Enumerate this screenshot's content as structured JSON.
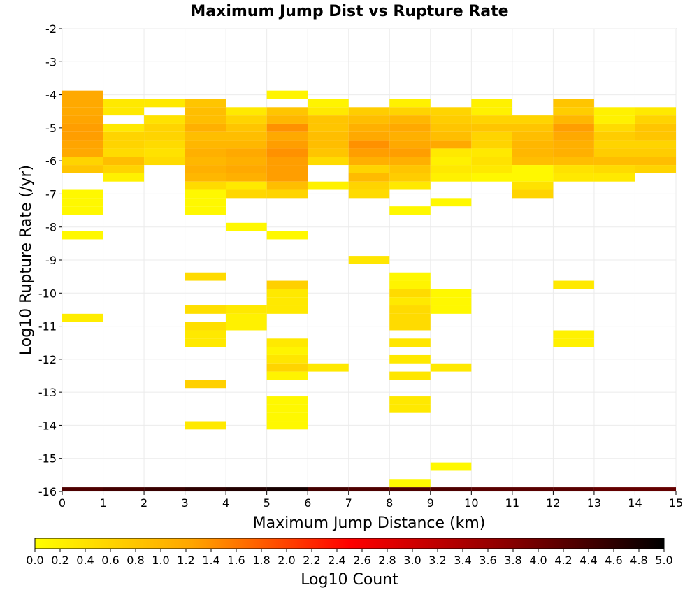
{
  "chart_data": {
    "type": "heatmap",
    "title": "Maximum Jump Dist vs Rupture Rate",
    "xlabel": "Maximum Jump Distance (km)",
    "ylabel": "Log10 Rupture Rate (/yr)",
    "xlim": [
      0,
      15
    ],
    "ylim": [
      -16,
      -2
    ],
    "x_ticks": [
      "0",
      "1",
      "2",
      "3",
      "4",
      "5",
      "6",
      "7",
      "8",
      "9",
      "10",
      "11",
      "12",
      "13",
      "14",
      "15"
    ],
    "y_ticks": [
      "-2",
      "-3",
      "-4",
      "-5",
      "-6",
      "-7",
      "-8",
      "-9",
      "-10",
      "-11",
      "-12",
      "-13",
      "-14",
      "-15",
      "-16"
    ],
    "bin_width_x": 1,
    "bin_height_y": 0.25,
    "grid": true,
    "colorbar": {
      "label": "Log10 Count",
      "range": [
        0,
        5
      ],
      "ticks": [
        "0.0",
        "0.2",
        "0.4",
        "0.6",
        "0.8",
        "1.0",
        "1.2",
        "1.4",
        "1.6",
        "1.8",
        "2.0",
        "2.2",
        "2.4",
        "2.6",
        "2.8",
        "3.0",
        "3.2",
        "3.4",
        "3.6",
        "3.8",
        "4.0",
        "4.2",
        "4.4",
        "4.6",
        "4.8",
        "5.0"
      ],
      "colors": [
        "#ffff00",
        "#ffa500",
        "#ff0000",
        "#8b0000",
        "#000000"
      ]
    },
    "cells": [
      {
        "x": 0,
        "y": -16.0,
        "v": 4.3
      },
      {
        "x": 1,
        "y": -16.0,
        "v": 4.4
      },
      {
        "x": 2,
        "y": -16.0,
        "v": 4.5
      },
      {
        "x": 3,
        "y": -16.0,
        "v": 4.6
      },
      {
        "x": 4,
        "y": -16.0,
        "v": 4.7
      },
      {
        "x": 5,
        "y": -16.0,
        "v": 4.8
      },
      {
        "x": 6,
        "y": -16.0,
        "v": 4.4
      },
      {
        "x": 7,
        "y": -16.0,
        "v": 4.3
      },
      {
        "x": 8,
        "y": -16.0,
        "v": 4.3
      },
      {
        "x": 9,
        "y": -16.0,
        "v": 4.3
      },
      {
        "x": 10,
        "y": -16.0,
        "v": 4.2
      },
      {
        "x": 11,
        "y": -16.0,
        "v": 4.2
      },
      {
        "x": 12,
        "y": -16.0,
        "v": 4.2
      },
      {
        "x": 13,
        "y": -16.0,
        "v": 4.1
      },
      {
        "x": 14,
        "y": -16.0,
        "v": 4.1
      },
      {
        "x": 0,
        "y": -4.0,
        "v": 1.2
      },
      {
        "x": 0,
        "y": -4.25,
        "v": 1.2
      },
      {
        "x": 0,
        "y": -4.5,
        "v": 1.2
      },
      {
        "x": 0,
        "y": -4.75,
        "v": 1.25
      },
      {
        "x": 0,
        "y": -5.0,
        "v": 1.3
      },
      {
        "x": 0,
        "y": -5.25,
        "v": 1.3
      },
      {
        "x": 0,
        "y": -5.5,
        "v": 1.25
      },
      {
        "x": 0,
        "y": -5.75,
        "v": 1.2
      },
      {
        "x": 0,
        "y": -6.0,
        "v": 0.6
      },
      {
        "x": 0,
        "y": -6.25,
        "v": 0.8
      },
      {
        "x": 0,
        "y": -7.0,
        "v": 0.1
      },
      {
        "x": 0,
        "y": -7.25,
        "v": 0.1
      },
      {
        "x": 0,
        "y": -7.5,
        "v": 0.1
      },
      {
        "x": 0,
        "y": -8.25,
        "v": 0.1
      },
      {
        "x": 0,
        "y": -10.75,
        "v": 0.25
      },
      {
        "x": 1,
        "y": -4.25,
        "v": 0.3
      },
      {
        "x": 1,
        "y": -4.5,
        "v": 0.3
      },
      {
        "x": 1,
        "y": -5.0,
        "v": 0.3
      },
      {
        "x": 1,
        "y": -5.25,
        "v": 0.6
      },
      {
        "x": 1,
        "y": -5.5,
        "v": 0.6
      },
      {
        "x": 1,
        "y": -5.75,
        "v": 0.5
      },
      {
        "x": 1,
        "y": -6.0,
        "v": 0.9
      },
      {
        "x": 1,
        "y": -6.25,
        "v": 0.6
      },
      {
        "x": 1,
        "y": -6.5,
        "v": 0.2
      },
      {
        "x": 2,
        "y": -4.25,
        "v": 0.3
      },
      {
        "x": 2,
        "y": -4.75,
        "v": 0.4
      },
      {
        "x": 2,
        "y": -5.0,
        "v": 0.6
      },
      {
        "x": 2,
        "y": -5.25,
        "v": 0.6
      },
      {
        "x": 2,
        "y": -5.5,
        "v": 0.5
      },
      {
        "x": 2,
        "y": -5.75,
        "v": 0.4
      },
      {
        "x": 2,
        "y": -6.0,
        "v": 0.5
      },
      {
        "x": 3,
        "y": -4.25,
        "v": 0.8
      },
      {
        "x": 3,
        "y": -4.5,
        "v": 0.9
      },
      {
        "x": 3,
        "y": -4.75,
        "v": 0.9
      },
      {
        "x": 3,
        "y": -5.0,
        "v": 1.1
      },
      {
        "x": 3,
        "y": -5.25,
        "v": 0.9
      },
      {
        "x": 3,
        "y": -5.5,
        "v": 1.0
      },
      {
        "x": 3,
        "y": -5.75,
        "v": 1.1
      },
      {
        "x": 3,
        "y": -6.0,
        "v": 1.0
      },
      {
        "x": 3,
        "y": -6.25,
        "v": 1.1
      },
      {
        "x": 3,
        "y": -6.5,
        "v": 1.0
      },
      {
        "x": 3,
        "y": -6.75,
        "v": 0.5
      },
      {
        "x": 3,
        "y": -7.0,
        "v": 0.1
      },
      {
        "x": 3,
        "y": -7.25,
        "v": 0.1
      },
      {
        "x": 3,
        "y": -7.5,
        "v": 0.1
      },
      {
        "x": 3,
        "y": -9.5,
        "v": 0.5
      },
      {
        "x": 3,
        "y": -10.5,
        "v": 0.45
      },
      {
        "x": 3,
        "y": -11.0,
        "v": 0.45
      },
      {
        "x": 3,
        "y": -11.25,
        "v": 0.3
      },
      {
        "x": 3,
        "y": -11.5,
        "v": 0.3
      },
      {
        "x": 3,
        "y": -12.75,
        "v": 0.65
      },
      {
        "x": 3,
        "y": -14.0,
        "v": 0.3
      },
      {
        "x": 4,
        "y": -4.5,
        "v": 0.3
      },
      {
        "x": 4,
        "y": -4.75,
        "v": 0.6
      },
      {
        "x": 4,
        "y": -5.0,
        "v": 0.8
      },
      {
        "x": 4,
        "y": -5.25,
        "v": 0.9
      },
      {
        "x": 4,
        "y": -5.5,
        "v": 1.0
      },
      {
        "x": 4,
        "y": -5.75,
        "v": 1.2
      },
      {
        "x": 4,
        "y": -6.0,
        "v": 1.1
      },
      {
        "x": 4,
        "y": -6.25,
        "v": 1.2
      },
      {
        "x": 4,
        "y": -6.5,
        "v": 1.1
      },
      {
        "x": 4,
        "y": -6.75,
        "v": 0.3
      },
      {
        "x": 4,
        "y": -7.0,
        "v": 0.55
      },
      {
        "x": 4,
        "y": -8.0,
        "v": 0.1
      },
      {
        "x": 4,
        "y": -10.5,
        "v": 0.3
      },
      {
        "x": 4,
        "y": -10.75,
        "v": 0.2
      },
      {
        "x": 4,
        "y": -11.0,
        "v": 0.2
      },
      {
        "x": 5,
        "y": -4.0,
        "v": 0.15
      },
      {
        "x": 5,
        "y": -4.5,
        "v": 0.8
      },
      {
        "x": 5,
        "y": -4.75,
        "v": 1.0
      },
      {
        "x": 5,
        "y": -5.0,
        "v": 1.4
      },
      {
        "x": 5,
        "y": -5.25,
        "v": 1.2
      },
      {
        "x": 5,
        "y": -5.5,
        "v": 1.3
      },
      {
        "x": 5,
        "y": -5.75,
        "v": 1.4
      },
      {
        "x": 5,
        "y": -6.0,
        "v": 1.3
      },
      {
        "x": 5,
        "y": -6.25,
        "v": 1.3
      },
      {
        "x": 5,
        "y": -6.5,
        "v": 1.3
      },
      {
        "x": 5,
        "y": -6.75,
        "v": 0.9
      },
      {
        "x": 5,
        "y": -7.0,
        "v": 0.6
      },
      {
        "x": 5,
        "y": -8.25,
        "v": 0.1
      },
      {
        "x": 5,
        "y": -9.75,
        "v": 0.65
      },
      {
        "x": 5,
        "y": -10.0,
        "v": 0.3
      },
      {
        "x": 5,
        "y": -10.25,
        "v": 0.3
      },
      {
        "x": 5,
        "y": -10.5,
        "v": 0.3
      },
      {
        "x": 5,
        "y": -11.5,
        "v": 0.3
      },
      {
        "x": 5,
        "y": -11.75,
        "v": 0.15
      },
      {
        "x": 5,
        "y": -12.0,
        "v": 0.35
      },
      {
        "x": 5,
        "y": -12.25,
        "v": 0.6
      },
      {
        "x": 5,
        "y": -12.5,
        "v": 0.15
      },
      {
        "x": 5,
        "y": -13.25,
        "v": 0.1
      },
      {
        "x": 5,
        "y": -13.5,
        "v": 0.1
      },
      {
        "x": 5,
        "y": -13.75,
        "v": 0.1
      },
      {
        "x": 5,
        "y": -14.0,
        "v": 0.1
      },
      {
        "x": 6,
        "y": -4.25,
        "v": 0.15
      },
      {
        "x": 6,
        "y": -4.5,
        "v": 0.3
      },
      {
        "x": 6,
        "y": -4.75,
        "v": 0.8
      },
      {
        "x": 6,
        "y": -5.0,
        "v": 0.8
      },
      {
        "x": 6,
        "y": -5.25,
        "v": 0.9
      },
      {
        "x": 6,
        "y": -5.5,
        "v": 0.9
      },
      {
        "x": 6,
        "y": -5.75,
        "v": 0.8
      },
      {
        "x": 6,
        "y": -6.0,
        "v": 0.5
      },
      {
        "x": 6,
        "y": -6.75,
        "v": 0.2
      },
      {
        "x": 6,
        "y": -12.25,
        "v": 0.3
      },
      {
        "x": 7,
        "y": -4.5,
        "v": 0.7
      },
      {
        "x": 7,
        "y": -4.75,
        "v": 0.9
      },
      {
        "x": 7,
        "y": -5.0,
        "v": 1.1
      },
      {
        "x": 7,
        "y": -5.25,
        "v": 1.2
      },
      {
        "x": 7,
        "y": -5.5,
        "v": 1.4
      },
      {
        "x": 7,
        "y": -5.75,
        "v": 1.3
      },
      {
        "x": 7,
        "y": -6.0,
        "v": 1.1
      },
      {
        "x": 7,
        "y": -6.25,
        "v": 0.6
      },
      {
        "x": 7,
        "y": -6.5,
        "v": 0.95
      },
      {
        "x": 7,
        "y": -6.75,
        "v": 0.6
      },
      {
        "x": 7,
        "y": -7.0,
        "v": 0.5
      },
      {
        "x": 7,
        "y": -9.0,
        "v": 0.35
      },
      {
        "x": 8,
        "y": -4.25,
        "v": 0.2
      },
      {
        "x": 8,
        "y": -4.5,
        "v": 0.6
      },
      {
        "x": 8,
        "y": -4.75,
        "v": 1.0
      },
      {
        "x": 8,
        "y": -5.0,
        "v": 1.2
      },
      {
        "x": 8,
        "y": -5.25,
        "v": 1.1
      },
      {
        "x": 8,
        "y": -5.5,
        "v": 1.2
      },
      {
        "x": 8,
        "y": -5.75,
        "v": 1.3
      },
      {
        "x": 8,
        "y": -6.0,
        "v": 1.1
      },
      {
        "x": 8,
        "y": -6.25,
        "v": 0.8
      },
      {
        "x": 8,
        "y": -6.5,
        "v": 0.7
      },
      {
        "x": 8,
        "y": -6.75,
        "v": 0.3
      },
      {
        "x": 8,
        "y": -7.5,
        "v": 0.1
      },
      {
        "x": 8,
        "y": -9.5,
        "v": 0.1
      },
      {
        "x": 8,
        "y": -9.75,
        "v": 0.15
      },
      {
        "x": 8,
        "y": -10.0,
        "v": 0.5
      },
      {
        "x": 8,
        "y": -10.25,
        "v": 0.3
      },
      {
        "x": 8,
        "y": -10.5,
        "v": 0.5
      },
      {
        "x": 8,
        "y": -10.75,
        "v": 0.5
      },
      {
        "x": 8,
        "y": -11.0,
        "v": 0.5
      },
      {
        "x": 8,
        "y": -11.5,
        "v": 0.35
      },
      {
        "x": 8,
        "y": -12.0,
        "v": 0.3
      },
      {
        "x": 8,
        "y": -12.5,
        "v": 0.35
      },
      {
        "x": 8,
        "y": -13.25,
        "v": 0.3
      },
      {
        "x": 8,
        "y": -13.5,
        "v": 0.3
      },
      {
        "x": 8,
        "y": -15.75,
        "v": 0.1
      },
      {
        "x": 9,
        "y": -4.5,
        "v": 0.6
      },
      {
        "x": 9,
        "y": -4.75,
        "v": 0.7
      },
      {
        "x": 9,
        "y": -5.0,
        "v": 0.8
      },
      {
        "x": 9,
        "y": -5.25,
        "v": 0.9
      },
      {
        "x": 9,
        "y": -5.5,
        "v": 1.2
      },
      {
        "x": 9,
        "y": -5.75,
        "v": 0.3
      },
      {
        "x": 9,
        "y": -6.0,
        "v": 0.2
      },
      {
        "x": 9,
        "y": -6.25,
        "v": 0.3
      },
      {
        "x": 9,
        "y": -6.5,
        "v": 0.2
      },
      {
        "x": 9,
        "y": -7.25,
        "v": 0.1
      },
      {
        "x": 9,
        "y": -10.0,
        "v": 0.1
      },
      {
        "x": 9,
        "y": -10.25,
        "v": 0.1
      },
      {
        "x": 9,
        "y": -10.5,
        "v": 0.1
      },
      {
        "x": 9,
        "y": -12.25,
        "v": 0.3
      },
      {
        "x": 9,
        "y": -15.25,
        "v": 0.1
      },
      {
        "x": 10,
        "y": -4.25,
        "v": 0.2
      },
      {
        "x": 10,
        "y": -4.5,
        "v": 0.2
      },
      {
        "x": 10,
        "y": -4.75,
        "v": 0.6
      },
      {
        "x": 10,
        "y": -5.0,
        "v": 0.8
      },
      {
        "x": 10,
        "y": -5.25,
        "v": 0.6
      },
      {
        "x": 10,
        "y": -5.5,
        "v": 0.6
      },
      {
        "x": 10,
        "y": -5.75,
        "v": 0.3
      },
      {
        "x": 10,
        "y": -6.0,
        "v": 0.4
      },
      {
        "x": 10,
        "y": -6.25,
        "v": 0.3
      },
      {
        "x": 10,
        "y": -6.5,
        "v": 0.1
      },
      {
        "x": 11,
        "y": -4.75,
        "v": 0.6
      },
      {
        "x": 11,
        "y": -5.0,
        "v": 0.8
      },
      {
        "x": 11,
        "y": -5.25,
        "v": 0.9
      },
      {
        "x": 11,
        "y": -5.5,
        "v": 1.0
      },
      {
        "x": 11,
        "y": -5.75,
        "v": 1.0
      },
      {
        "x": 11,
        "y": -6.0,
        "v": 0.9
      },
      {
        "x": 11,
        "y": -6.25,
        "v": 0.1
      },
      {
        "x": 11,
        "y": -6.5,
        "v": 0.1
      },
      {
        "x": 11,
        "y": -6.75,
        "v": 0.4
      },
      {
        "x": 11,
        "y": -7.0,
        "v": 0.6
      },
      {
        "x": 12,
        "y": -4.25,
        "v": 0.8
      },
      {
        "x": 12,
        "y": -4.5,
        "v": 0.7
      },
      {
        "x": 12,
        "y": -4.75,
        "v": 1.0
      },
      {
        "x": 12,
        "y": -5.0,
        "v": 1.3
      },
      {
        "x": 12,
        "y": -5.25,
        "v": 1.2
      },
      {
        "x": 12,
        "y": -5.5,
        "v": 1.1
      },
      {
        "x": 12,
        "y": -5.75,
        "v": 1.1
      },
      {
        "x": 12,
        "y": -6.0,
        "v": 0.9
      },
      {
        "x": 12,
        "y": -6.25,
        "v": 0.4
      },
      {
        "x": 12,
        "y": -6.5,
        "v": 0.3
      },
      {
        "x": 12,
        "y": -9.75,
        "v": 0.3
      },
      {
        "x": 12,
        "y": -11.25,
        "v": 0.2
      },
      {
        "x": 12,
        "y": -11.5,
        "v": 0.2
      },
      {
        "x": 13,
        "y": -4.5,
        "v": 0.2
      },
      {
        "x": 13,
        "y": -4.75,
        "v": 0.2
      },
      {
        "x": 13,
        "y": -5.0,
        "v": 0.5
      },
      {
        "x": 13,
        "y": -5.25,
        "v": 0.7
      },
      {
        "x": 13,
        "y": -5.5,
        "v": 0.6
      },
      {
        "x": 13,
        "y": -5.75,
        "v": 0.7
      },
      {
        "x": 13,
        "y": -6.0,
        "v": 0.9
      },
      {
        "x": 13,
        "y": -6.25,
        "v": 0.5
      },
      {
        "x": 13,
        "y": -6.5,
        "v": 0.3
      },
      {
        "x": 14,
        "y": -4.5,
        "v": 0.3
      },
      {
        "x": 14,
        "y": -4.75,
        "v": 0.6
      },
      {
        "x": 14,
        "y": -5.0,
        "v": 0.8
      },
      {
        "x": 14,
        "y": -5.25,
        "v": 0.8
      },
      {
        "x": 14,
        "y": -5.5,
        "v": 0.6
      },
      {
        "x": 14,
        "y": -5.75,
        "v": 0.7
      },
      {
        "x": 14,
        "y": -6.0,
        "v": 0.9
      },
      {
        "x": 14,
        "y": -6.25,
        "v": 0.6
      }
    ]
  }
}
